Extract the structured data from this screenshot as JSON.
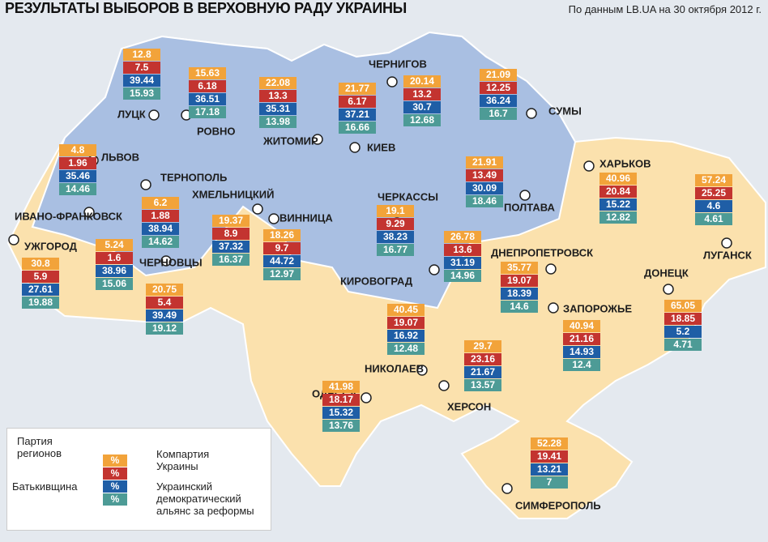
{
  "header": {
    "title": "РЕЗУЛЬТАТЫ ВЫБОРОВ В ВЕРХОВНУЮ РАДУ УКРАИНЫ",
    "source": "По данным LB.UA на 30 октября 2012 г."
  },
  "legend": {
    "swatch_label": "%",
    "parties": [
      {
        "name": "Партия регионов",
        "color": "#f2a33a"
      },
      {
        "name": "Компартия Украины",
        "color": "#c33430"
      },
      {
        "name": "Батькивщина",
        "color": "#1f5ea6"
      },
      {
        "name": "Украинский демократический альянс за реформы",
        "color": "#4d9b96"
      }
    ]
  },
  "regions": [
    {
      "city": "ЛУЦК",
      "values": [
        12.8,
        7.5,
        39.44,
        15.93
      ]
    },
    {
      "city": "РОВНО",
      "values": [
        15.63,
        6.18,
        36.51,
        17.18
      ]
    },
    {
      "city": "ЖИТОМИР",
      "values": [
        22.08,
        13.3,
        35.31,
        13.98
      ]
    },
    {
      "city": "КИЕВ",
      "values": [
        21.77,
        6.17,
        37.21,
        16.66
      ]
    },
    {
      "city": "ЧЕРНИГОВ",
      "values": [
        20.14,
        13.2,
        30.7,
        12.68
      ]
    },
    {
      "city": "СУМЫ",
      "values": [
        21.09,
        12.25,
        36.24,
        16.7
      ]
    },
    {
      "city": "ЛЬВОВ",
      "values": [
        4.8,
        1.96,
        35.46,
        14.46
      ]
    },
    {
      "city": "ТЕРНОПОЛЬ",
      "values": [
        6.2,
        1.88,
        38.94,
        14.62
      ]
    },
    {
      "city": "ХМЕЛЬНИЦКИЙ",
      "values": [
        19.37,
        8.9,
        37.32,
        16.37
      ]
    },
    {
      "city": "ИВАНО-ФРАНКОВСК",
      "values": [
        5.24,
        1.6,
        38.96,
        15.06
      ]
    },
    {
      "city": "ЧЕРНОВЦЫ",
      "values": [
        20.75,
        5.4,
        39.49,
        19.12
      ]
    },
    {
      "city": "УЖГОРОД",
      "values": [
        30.8,
        5.9,
        27.61,
        19.88
      ]
    },
    {
      "city": "ВИННИЦА",
      "values": [
        18.26,
        9.7,
        44.72,
        12.97
      ]
    },
    {
      "city": "ЧЕРКАССЫ",
      "values": [
        19.1,
        9.29,
        38.23,
        16.77
      ]
    },
    {
      "city": "ПОЛТАВА",
      "values": [
        21.91,
        13.49,
        30.09,
        18.46
      ]
    },
    {
      "city": "ХАРЬКОВ",
      "values": [
        40.96,
        20.84,
        15.22,
        12.82
      ]
    },
    {
      "city": "ЛУГАНСК",
      "values": [
        57.24,
        25.25,
        4.6,
        4.61
      ]
    },
    {
      "city": "КИРОВОГРАД",
      "values": [
        26.78,
        13.6,
        31.19,
        14.96
      ]
    },
    {
      "city": "ДНЕПРОПЕТРОВСК",
      "values": [
        35.77,
        19.07,
        18.39,
        14.6
      ]
    },
    {
      "city": "ДОНЕЦК",
      "values": [
        65.05,
        18.85,
        5.2,
        4.71
      ]
    },
    {
      "city": "ЗАПОРОЖЬЕ",
      "values": [
        40.94,
        21.16,
        14.93,
        12.4
      ]
    },
    {
      "city": "НИКОЛАЕВ",
      "values": [
        40.45,
        19.07,
        16.92,
        12.48
      ]
    },
    {
      "city": "ХЕРСОН",
      "values": [
        29.7,
        23.16,
        21.67,
        13.57
      ]
    },
    {
      "city": "ОДЕССА",
      "values": [
        41.98,
        18.17,
        15.32,
        13.76
      ]
    },
    {
      "city": "СИМФЕРОПОЛЬ",
      "values": [
        52.28,
        19.41,
        13.21,
        7
      ]
    }
  ]
}
